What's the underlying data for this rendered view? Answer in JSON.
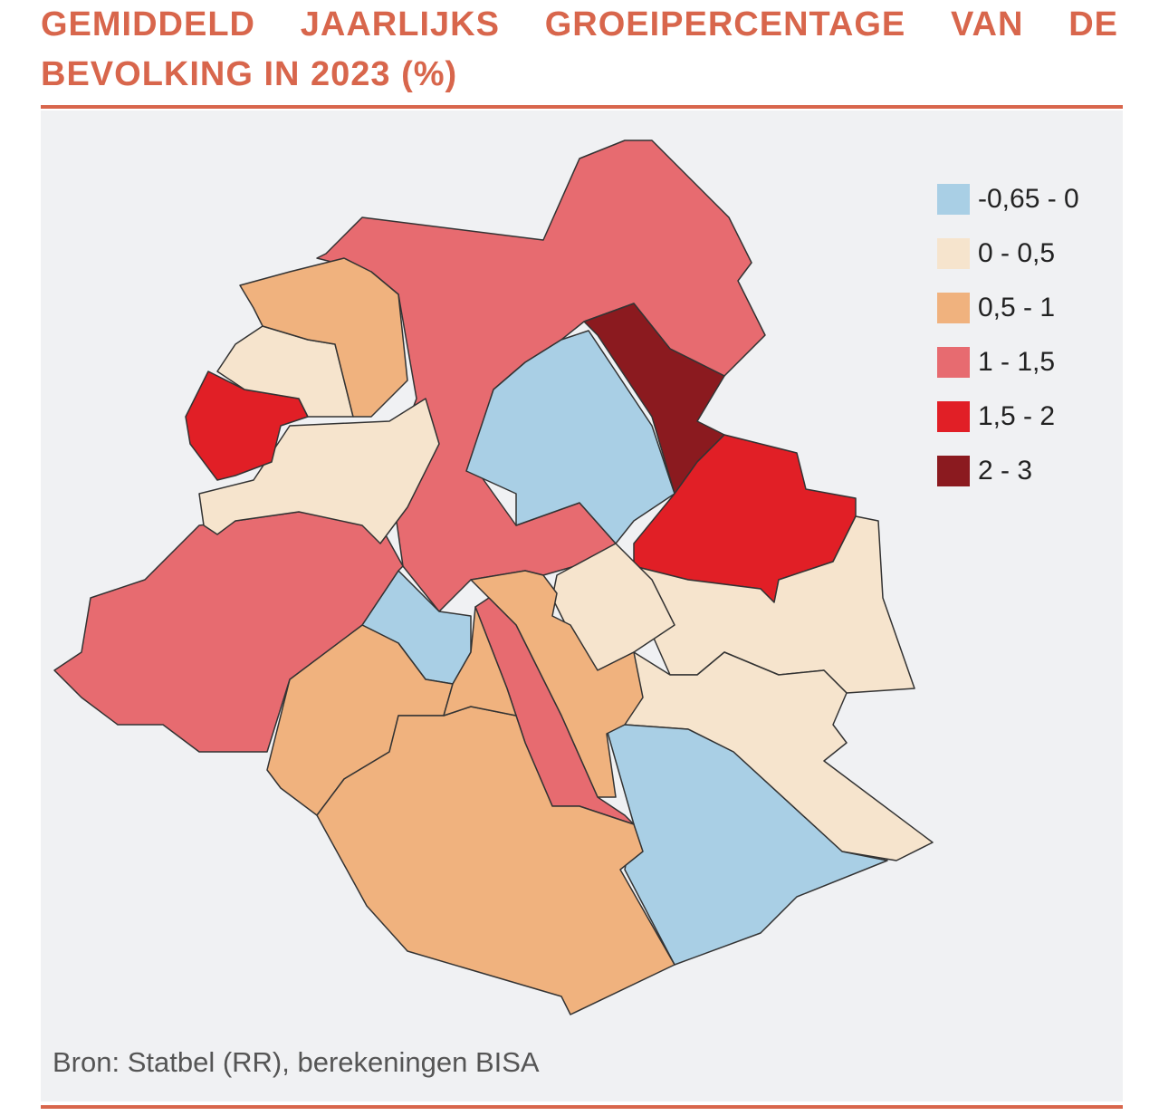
{
  "title": "GEMIDDELD JAARLIJKS GROEIPERCENTAGE VAN DE BEVOLKING IN 2023 (%)",
  "legend": [
    {
      "label": "-0,65 - 0",
      "color": "#a9cfe5"
    },
    {
      "label": "0 - 0,5",
      "color": "#f6e4cd"
    },
    {
      "label": "0,5 - 1",
      "color": "#f0b27e"
    },
    {
      "label": "1 - 1,5",
      "color": "#e76b70"
    },
    {
      "label": "1,5 - 2",
      "color": "#e11f26"
    },
    {
      "label": "2 - 3",
      "color": "#8b1a1f"
    }
  ],
  "source": "Bron: Statbel (RR), berekeningen BISA"
}
